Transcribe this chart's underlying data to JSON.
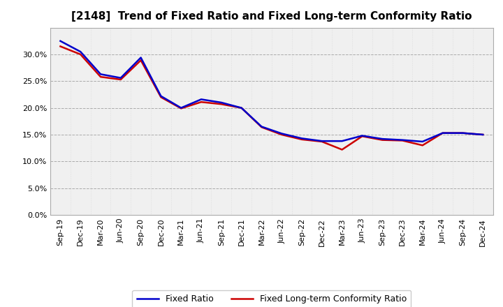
{
  "title": "[2148]  Trend of Fixed Ratio and Fixed Long-term Conformity Ratio",
  "x_labels": [
    "Sep-19",
    "Dec-19",
    "Mar-20",
    "Jun-20",
    "Sep-20",
    "Dec-20",
    "Mar-21",
    "Jun-21",
    "Sep-21",
    "Dec-21",
    "Mar-22",
    "Jun-22",
    "Sep-22",
    "Dec-22",
    "Mar-23",
    "Jun-23",
    "Sep-23",
    "Dec-23",
    "Mar-24",
    "Jun-24",
    "Sep-24",
    "Dec-24"
  ],
  "fixed_ratio": [
    0.325,
    0.305,
    0.263,
    0.256,
    0.294,
    0.222,
    0.2,
    0.216,
    0.21,
    0.2,
    0.165,
    0.152,
    0.143,
    0.138,
    0.138,
    0.148,
    0.142,
    0.14,
    0.137,
    0.153,
    0.153,
    0.15
  ],
  "fixed_lt_ratio": [
    0.315,
    0.3,
    0.258,
    0.253,
    0.289,
    0.22,
    0.199,
    0.211,
    0.207,
    0.2,
    0.164,
    0.15,
    0.141,
    0.137,
    0.122,
    0.147,
    0.14,
    0.139,
    0.13,
    0.153,
    0.153,
    0.15
  ],
  "fixed_ratio_color": "#0000cc",
  "fixed_lt_ratio_color": "#cc0000",
  "ylim": [
    0.0,
    0.35
  ],
  "yticks": [
    0.0,
    0.05,
    0.1,
    0.15,
    0.2,
    0.25,
    0.3
  ],
  "background_color": "#ffffff",
  "plot_bg_color": "#f0f0f0",
  "grid_color": "#999999",
  "dot_color": "#bbbbbb",
  "legend_fixed": "Fixed Ratio",
  "legend_lt": "Fixed Long-term Conformity Ratio",
  "line_width": 1.8,
  "title_fontsize": 11,
  "tick_fontsize": 8
}
